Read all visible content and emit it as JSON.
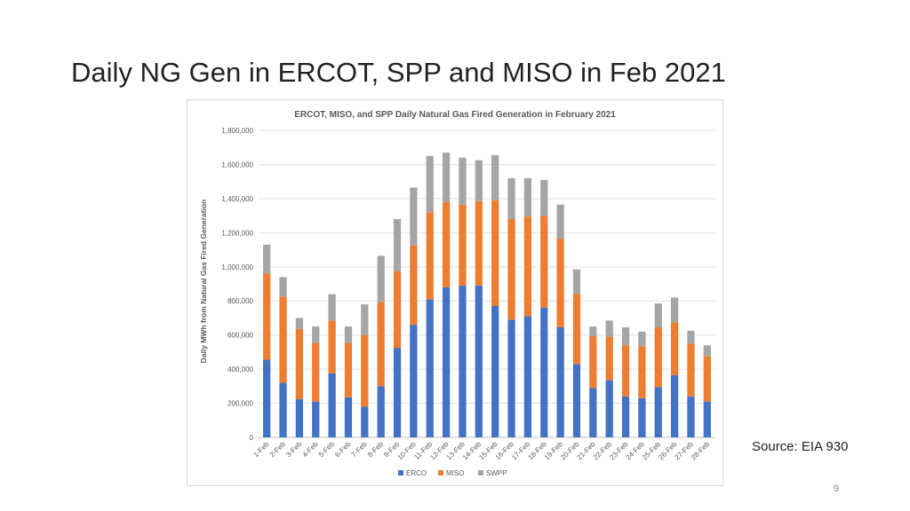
{
  "slide": {
    "title": "Daily NG Gen in ERCOT, SPP and MISO in Feb 2021",
    "source": "Source: EIA 930",
    "page_number": "9"
  },
  "chart_data": {
    "type": "bar",
    "stacked": true,
    "title": "ERCOT, MISO, and SPP Daily Natural Gas Fired Generation in February 2021",
    "xlabel": "",
    "ylabel": "Daily MWh from Natural Gas Fired Generation",
    "ylim": [
      0,
      1800000
    ],
    "yticks": [
      0,
      200000,
      400000,
      600000,
      800000,
      1000000,
      1200000,
      1400000,
      1600000,
      1800000
    ],
    "ytick_labels": [
      "0",
      "200,000",
      "400,000",
      "600,000",
      "800,000",
      "1,000,000",
      "1,200,000",
      "1,400,000",
      "1,600,000",
      "1,800,000"
    ],
    "grid": true,
    "legend_position": "bottom",
    "categories": [
      "1-Feb",
      "2-Feb",
      "3-Feb",
      "4-Feb",
      "5-Feb",
      "6-Feb",
      "7-Feb",
      "8-Feb",
      "9-Feb",
      "10-Feb",
      "11-Feb",
      "12-Feb",
      "13-Feb",
      "14-Feb",
      "15-Feb",
      "16-Feb",
      "17-Feb",
      "18-Feb",
      "19-Feb",
      "20-Feb",
      "21-Feb",
      "22-Feb",
      "23-Feb",
      "24-Feb",
      "25-Feb",
      "26-Feb",
      "27-Feb",
      "28-Feb"
    ],
    "series": [
      {
        "name": "ERCO",
        "color": "#4472C4",
        "values": [
          455000,
          320000,
          225000,
          210000,
          375000,
          235000,
          180000,
          300000,
          525000,
          660000,
          810000,
          880000,
          890000,
          890000,
          770000,
          690000,
          710000,
          760000,
          645000,
          430000,
          290000,
          335000,
          240000,
          230000,
          295000,
          365000,
          240000,
          210000
        ]
      },
      {
        "name": "MISO",
        "color": "#ED7D31",
        "values": [
          505000,
          505000,
          410000,
          345000,
          310000,
          320000,
          420000,
          495000,
          450000,
          465000,
          510000,
          500000,
          475000,
          495000,
          620000,
          590000,
          585000,
          540000,
          520000,
          410000,
          305000,
          255000,
          300000,
          305000,
          350000,
          310000,
          310000,
          265000
        ]
      },
      {
        "name": "SWPP",
        "color": "#A5A5A5",
        "values": [
          170000,
          115000,
          65000,
          95000,
          155000,
          95000,
          180000,
          270000,
          305000,
          340000,
          330000,
          290000,
          275000,
          240000,
          265000,
          240000,
          225000,
          210000,
          200000,
          145000,
          55000,
          95000,
          105000,
          85000,
          140000,
          145000,
          75000,
          65000
        ]
      }
    ]
  }
}
